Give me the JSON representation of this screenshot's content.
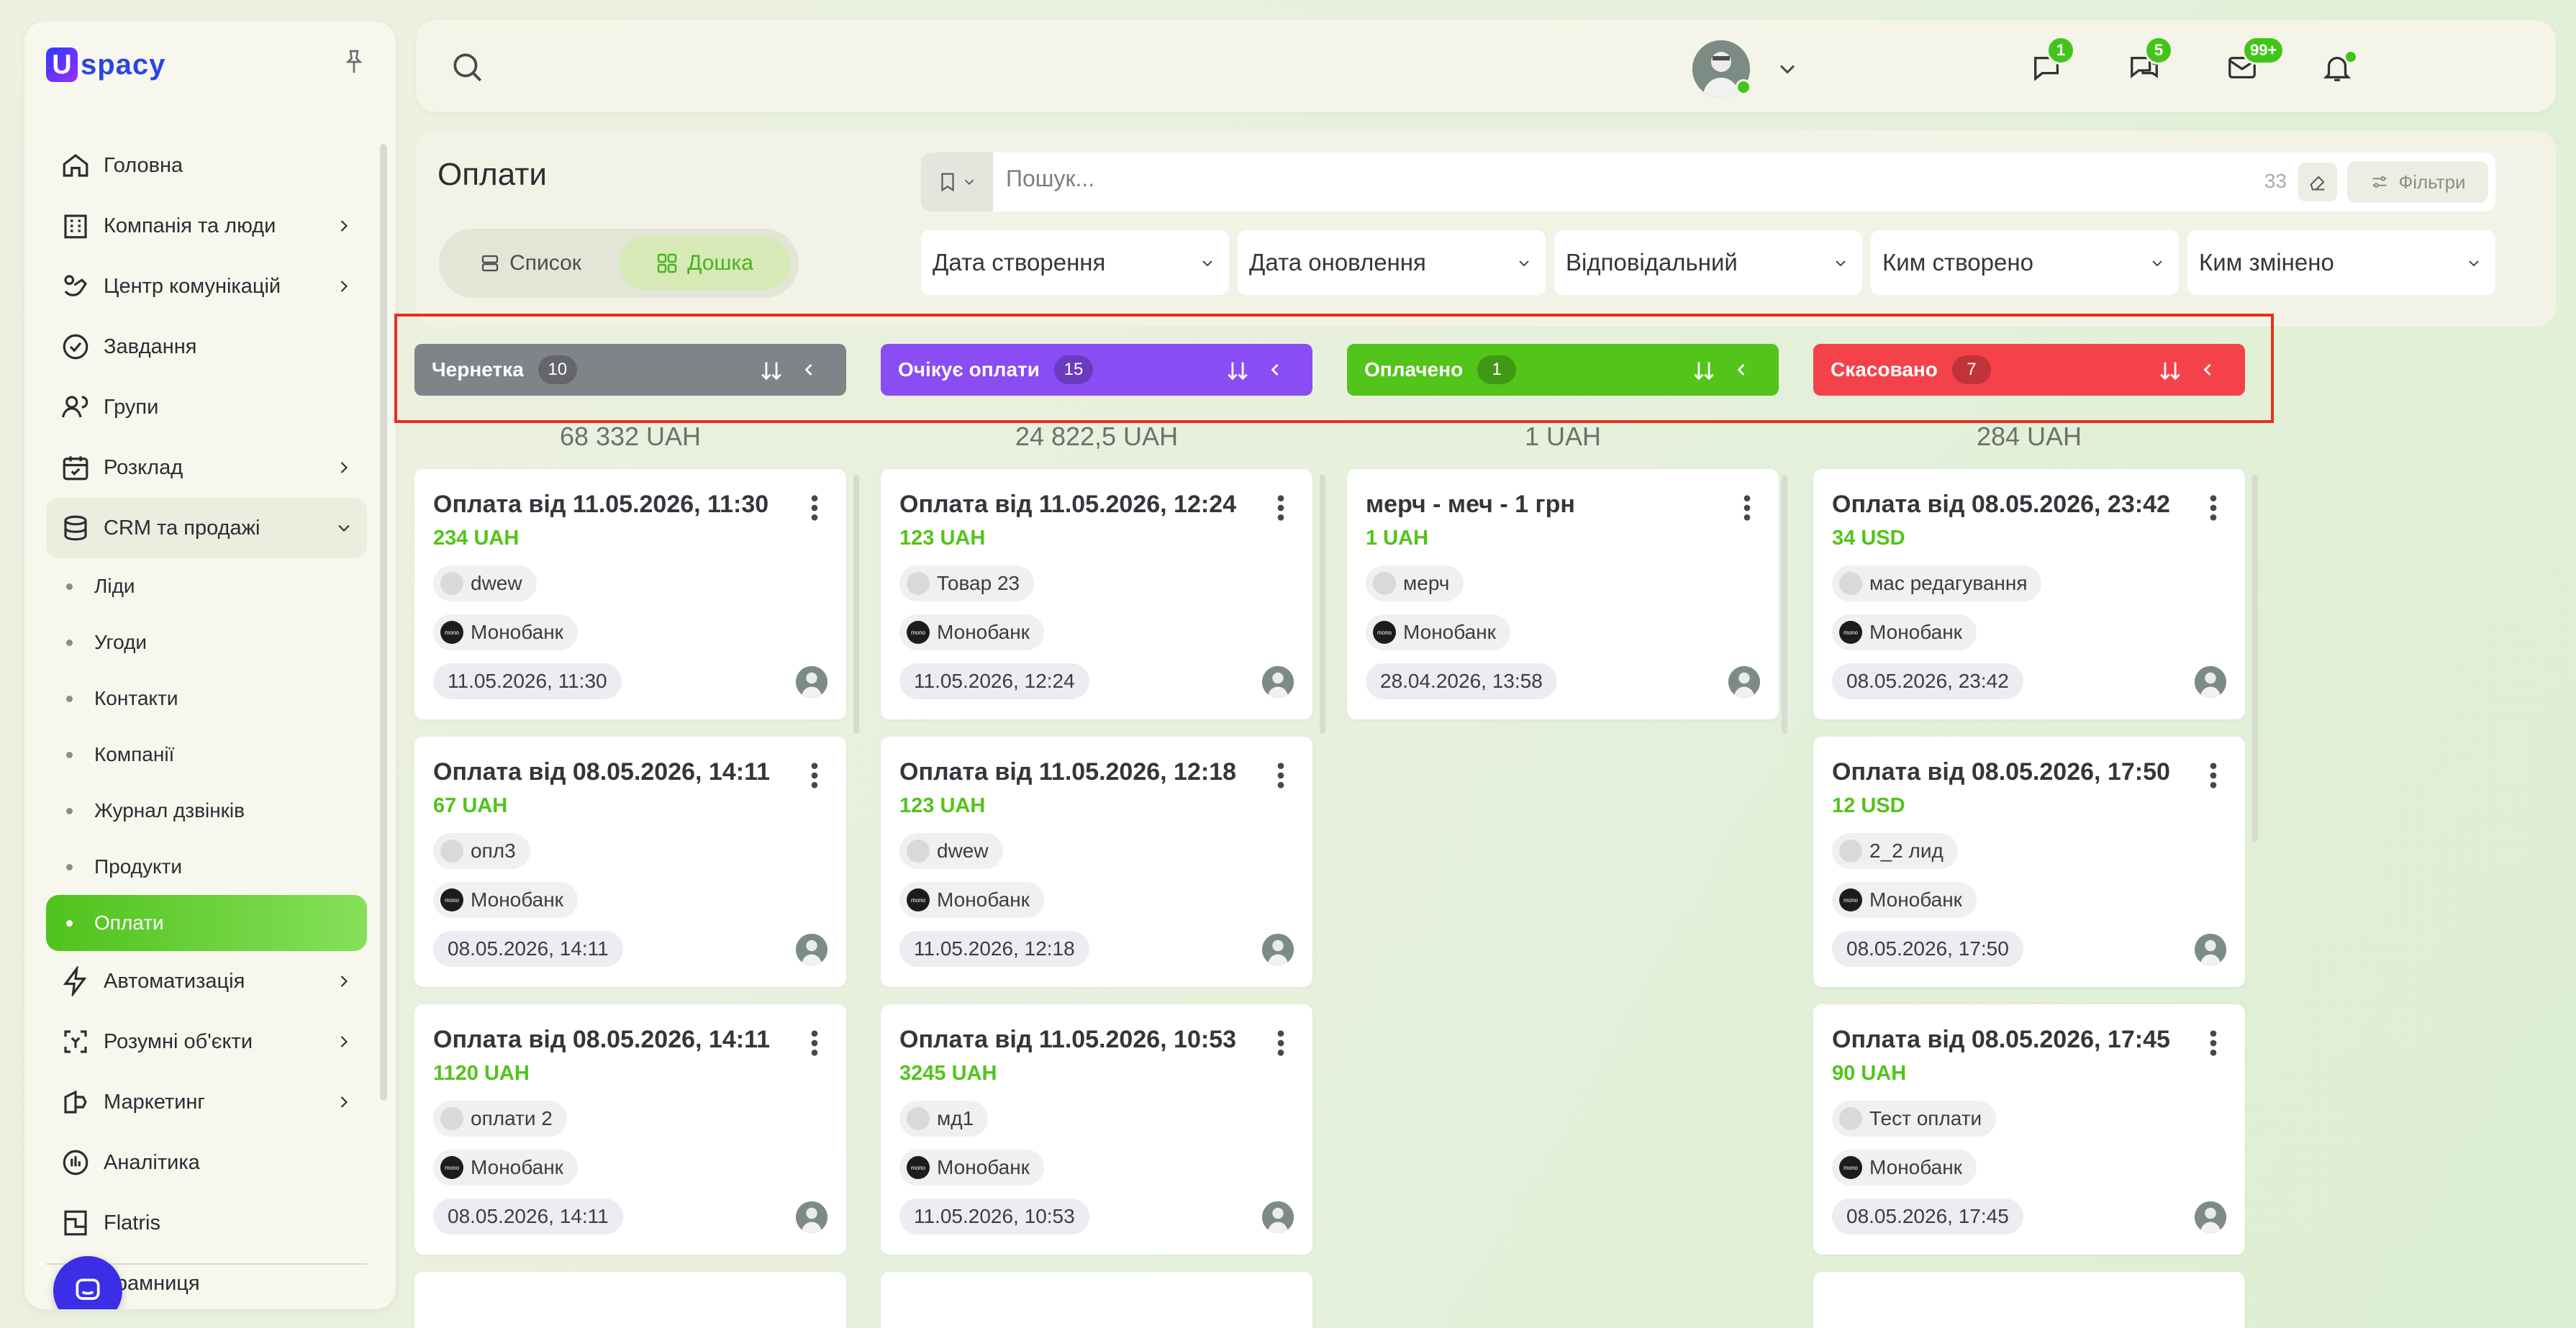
{
  "app": {
    "logo_letter": "U",
    "logo_text": "spacy"
  },
  "nav": [
    {
      "label": "Головна",
      "icon": "home-icon",
      "chev": false
    },
    {
      "label": "Компанія та люди",
      "icon": "company-icon",
      "chev": true
    },
    {
      "label": "Центр комунікацій",
      "icon": "communications-icon",
      "chev": true
    },
    {
      "label": "Завдання",
      "icon": "tasks-icon",
      "chev": false
    },
    {
      "label": "Групи",
      "icon": "groups-icon",
      "chev": false
    },
    {
      "label": "Розклад",
      "icon": "calendar-icon",
      "chev": true
    },
    {
      "label": "CRM та продажі",
      "icon": "database-icon",
      "chev": true
    }
  ],
  "crm_sub": [
    "Ліди",
    "Угоди",
    "Контакти",
    "Компанії",
    "Журнал дзвінків",
    "Продукти",
    "Оплати"
  ],
  "nav2": [
    {
      "label": "Автоматизація",
      "icon": "lightning-icon",
      "chev": true
    },
    {
      "label": "Розумні об'єкти",
      "icon": "smart-objects-icon",
      "chev": true
    },
    {
      "label": "Маркетинг",
      "icon": "marketing-icon",
      "chev": true
    },
    {
      "label": "Аналітика",
      "icon": "analytics-icon",
      "chev": false
    },
    {
      "label": "Flatris",
      "icon": "flatris-icon",
      "chev": false
    },
    {
      "label": "Крамниця",
      "icon": "shop-icon",
      "chev": false
    }
  ],
  "topbar": {
    "chat_badge": "1",
    "comments_badge": "5",
    "mail_badge": "99+"
  },
  "page": {
    "title": "Оплати",
    "view_list": "Список",
    "view_board": "Дошка",
    "search_placeholder": "Пошук...",
    "count": "33",
    "filters_label": "Фільтри"
  },
  "filters": [
    "Дата створення",
    "Дата оновлення",
    "Відповідальний",
    "Ким створено",
    "Ким змінено"
  ],
  "columns": [
    {
      "title": "Чернетка",
      "count": "10",
      "color": "#808388",
      "sum": "68 332 UAH",
      "cards": [
        {
          "title": "Оплата від 11.05.2026, 11:30",
          "amount": "234 UAH",
          "product": "dwew",
          "provider": "Монобанк",
          "date": "11.05.2026, 11:30"
        },
        {
          "title": "Оплата від 08.05.2026, 14:11",
          "amount": "67 UAH",
          "product": "опл3",
          "provider": "Монобанк",
          "date": "08.05.2026, 14:11"
        },
        {
          "title": "Оплата від 08.05.2026, 14:11",
          "amount": "1120 UAH",
          "product": "оплати 2",
          "provider": "Монобанк",
          "date": "08.05.2026, 14:11"
        }
      ]
    },
    {
      "title": "Очікує оплати",
      "count": "15",
      "color": "#8a4cf3",
      "sum": "24 822,5 UAH",
      "cards": [
        {
          "title": "Оплата від 11.05.2026, 12:24",
          "amount": "123 UAH",
          "product": "Товар 23",
          "provider": "Монобанк",
          "date": "11.05.2026, 12:24"
        },
        {
          "title": "Оплата від 11.05.2026, 12:18",
          "amount": "123 UAH",
          "product": "dwew",
          "provider": "Монобанк",
          "date": "11.05.2026, 12:18"
        },
        {
          "title": "Оплата від 11.05.2026, 10:53",
          "amount": "3245 UAH",
          "product": "мд1",
          "provider": "Монобанк",
          "date": "11.05.2026, 10:53"
        }
      ]
    },
    {
      "title": "Оплачено",
      "count": "1",
      "color": "#52c41a",
      "sum": "1 UAH",
      "cards": [
        {
          "title": "мерч - меч - 1 грн",
          "amount": "1 UAH",
          "product": "мерч",
          "provider": "Монобанк",
          "date": "28.04.2026, 13:58"
        }
      ]
    },
    {
      "title": "Скасовано",
      "count": "7",
      "color": "#f5424a",
      "sum": "284 UAH",
      "cards": [
        {
          "title": "Оплата від 08.05.2026, 23:42",
          "amount": "34 USD",
          "product": "мас редагування",
          "provider": "Монобанк",
          "date": "08.05.2026, 23:42"
        },
        {
          "title": "Оплата від 08.05.2026, 17:50",
          "amount": "12 USD",
          "product": "2_2 лид",
          "provider": "Монобанк",
          "date": "08.05.2026, 17:50"
        },
        {
          "title": "Оплата від 08.05.2026, 17:45",
          "amount": "90 UAH",
          "product": "Тест оплати",
          "provider": "Монобанк",
          "date": "08.05.2026, 17:45"
        }
      ]
    }
  ]
}
